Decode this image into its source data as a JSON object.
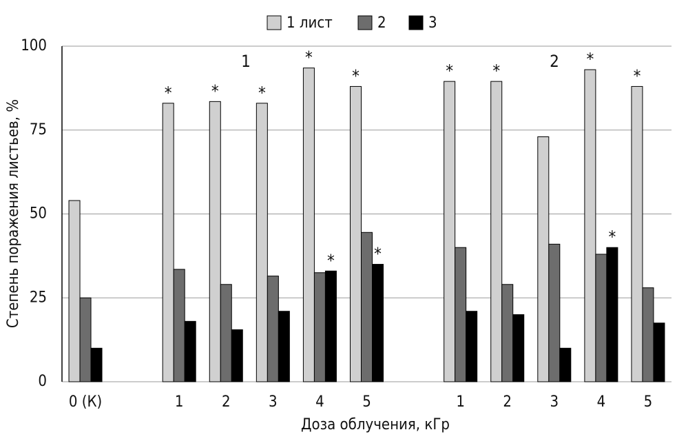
{
  "chart_data": {
    "type": "bar",
    "x_label": "Доза облучения, кГр",
    "y_label": "Степень поражения листьев, %",
    "categories": [
      "0 (К)",
      null,
      "1",
      "2",
      "3",
      "4",
      "5",
      null,
      "1",
      "2",
      "3",
      "4",
      "5"
    ],
    "series": [
      {
        "name": "1 лист",
        "color": "#d0d0d0",
        "values": [
          54,
          null,
          83,
          83.5,
          83,
          93.5,
          88,
          null,
          89.5,
          89.5,
          73,
          93,
          88
        ]
      },
      {
        "name": "2",
        "color": "#6d6d6d",
        "values": [
          25,
          null,
          33.5,
          29,
          31.5,
          32.5,
          44.5,
          null,
          40,
          29,
          41,
          38,
          28
        ]
      },
      {
        "name": "3",
        "color": "#000000",
        "values": [
          10,
          null,
          18,
          15.5,
          21,
          33,
          35,
          null,
          21,
          20,
          10,
          40,
          17.5
        ]
      }
    ],
    "annotations": [
      {
        "text": "*",
        "series": 0,
        "index": 2
      },
      {
        "text": "*",
        "series": 0,
        "index": 3
      },
      {
        "text": "*",
        "series": 0,
        "index": 4
      },
      {
        "text": "*",
        "series": 0,
        "index": 5
      },
      {
        "text": "*",
        "series": 0,
        "index": 6
      },
      {
        "text": "*",
        "series": 0,
        "index": 8
      },
      {
        "text": "*",
        "series": 0,
        "index": 9
      },
      {
        "text": "*",
        "series": 0,
        "index": 11
      },
      {
        "text": "*",
        "series": 0,
        "index": 12
      },
      {
        "text": "*",
        "series": 2,
        "index": 5
      },
      {
        "text": "*",
        "series": 2,
        "index": 6
      },
      {
        "text": "*",
        "series": 2,
        "index": 11
      }
    ],
    "group_labels": [
      "1",
      "2"
    ],
    "ylim": [
      0,
      100
    ],
    "yticks": [
      0,
      25,
      50,
      75,
      100
    ],
    "grid": true,
    "legend": "top"
  }
}
